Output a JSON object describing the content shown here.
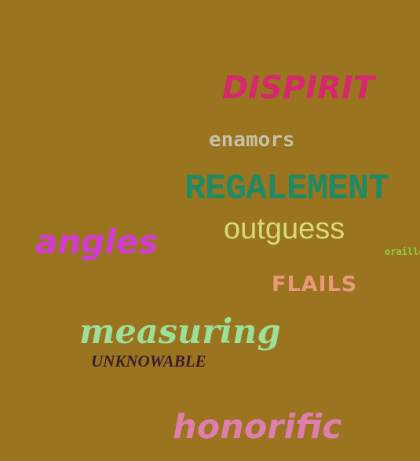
{
  "background_color": "#9b7420",
  "words": [
    {
      "text": "DISPIRIT",
      "color": "#d5286d"
    },
    {
      "text": "enamors",
      "color": "#c9c1a3"
    },
    {
      "text": "REGALEMENT",
      "color": "#1f8a63"
    },
    {
      "text": "outguess",
      "color": "#d7dc72"
    },
    {
      "text": "angles",
      "color": "#d23bd3"
    },
    {
      "text": "orailles",
      "color": "#8ecf3b"
    },
    {
      "text": "FLAILS",
      "color": "#ea9a7a"
    },
    {
      "text": "measuring",
      "color": "#9bdf98"
    },
    {
      "text": "UNKNOWABLE",
      "color": "#3e1a2f"
    },
    {
      "text": "honorific",
      "color": "#df7dad"
    }
  ]
}
